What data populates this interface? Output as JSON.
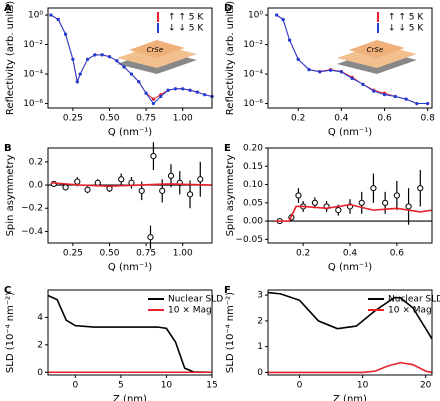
{
  "chart_data": [
    {
      "panel": "A",
      "type": "scatter",
      "log_y": true,
      "inset_label": "CrSe",
      "legend": "upper right",
      "xlabel": "Q (nm⁻¹)",
      "ylabel": "Reflectivity (arb. units)",
      "xlim": [
        0.08,
        1.2
      ],
      "xticks": [
        0.25,
        {
          "value": 0.5,
          "label": "0.50"
        },
        0.75,
        {
          "value": 1.0,
          "label": "1.00"
        }
      ],
      "ylim": [
        5e-07,
        3
      ],
      "yticks": [
        {
          "value": 1,
          "label": "10⁰"
        },
        {
          "value": 0.01,
          "label": "10⁻²"
        },
        {
          "value": 0.0001,
          "label": "10⁻⁴"
        },
        {
          "value": 1e-06,
          "label": "10⁻⁶"
        }
      ],
      "series": [
        {
          "name": "↑ ↑ 5 K",
          "color": "#e8202a",
          "style": "markers",
          "x": [
            0.1,
            0.15,
            0.2,
            0.25,
            0.28,
            0.3,
            0.35,
            0.4,
            0.45,
            0.5,
            0.55,
            0.6,
            0.65,
            0.7,
            0.75,
            0.8,
            0.85,
            0.9,
            0.95,
            1.0,
            1.05,
            1.1,
            1.15,
            1.2
          ],
          "values": [
            1,
            0.5,
            0.05,
            0.001,
            3e-05,
            0.0001,
            0.001,
            0.002,
            0.002,
            0.0015,
            0.0008,
            0.0003,
            0.0001,
            3e-05,
            5e-06,
            2e-06,
            4e-06,
            8e-06,
            1e-05,
            1e-05,
            8e-06,
            6e-06,
            4e-06,
            3e-06
          ]
        },
        {
          "name": "↓ ↓ 5 K",
          "color": "#1f3fd8",
          "style": "markers",
          "x": [
            0.1,
            0.15,
            0.2,
            0.25,
            0.28,
            0.3,
            0.35,
            0.4,
            0.45,
            0.5,
            0.55,
            0.6,
            0.65,
            0.7,
            0.75,
            0.8,
            0.85,
            0.9,
            0.95,
            1.0,
            1.05,
            1.1,
            1.15,
            1.2
          ],
          "values": [
            1,
            0.5,
            0.05,
            0.001,
            3e-05,
            0.0001,
            0.001,
            0.002,
            0.002,
            0.0015,
            0.0008,
            0.0003,
            0.0001,
            3e-05,
            5e-06,
            1e-06,
            3e-06,
            8e-06,
            1e-05,
            1e-05,
            8e-06,
            6e-06,
            4e-06,
            3e-06
          ]
        }
      ]
    },
    {
      "panel": "B",
      "type": "errorbar",
      "xlabel": "Q (nm⁻¹)",
      "ylabel": "Spin asymmetry",
      "xlim": [
        0.08,
        1.2
      ],
      "xticks": [
        0.25,
        {
          "value": 0.5,
          "label": "0.50"
        },
        0.75,
        {
          "value": 1.0,
          "label": "1.00"
        }
      ],
      "ylim": [
        -0.5,
        0.32
      ],
      "yticks": [
        {
          "value": -0.4,
          "label": "−0.4"
        },
        {
          "value": -0.2,
          "label": "−0.2"
        },
        {
          "value": 0,
          "label": "0.0"
        },
        {
          "value": 0.2,
          "label": "0.2"
        }
      ],
      "series": [
        {
          "color": "#000000",
          "style": "errorbar",
          "x": [
            0.12,
            0.2,
            0.28,
            0.35,
            0.42,
            0.5,
            0.58,
            0.65,
            0.72,
            0.78,
            0.8,
            0.86,
            0.92,
            0.98,
            1.05,
            1.12
          ],
          "values": [
            0.01,
            -0.02,
            0.03,
            -0.04,
            0.02,
            -0.03,
            0.05,
            0.02,
            -0.05,
            -0.45,
            0.25,
            -0.05,
            0.08,
            0.02,
            -0.08,
            0.05
          ],
          "errors": [
            0.01,
            0.02,
            0.04,
            0.03,
            0.03,
            0.03,
            0.05,
            0.05,
            0.08,
            0.1,
            0.12,
            0.1,
            0.1,
            0.1,
            0.12,
            0.15
          ]
        },
        {
          "color": "#e8202a",
          "style": "line",
          "x": [
            0.1,
            0.3,
            0.5,
            0.7,
            0.9,
            1.2
          ],
          "values": [
            0.02,
            0,
            -0.01,
            0,
            0.01,
            0
          ]
        }
      ]
    },
    {
      "panel": "C",
      "type": "line",
      "legend": "upper right",
      "xlabel": "Z (nm)",
      "ylabel": "SLD (10⁻⁴ nm⁻²)",
      "xlim": [
        -3,
        15
      ],
      "xticks": [
        0,
        5,
        10,
        15
      ],
      "ylim": [
        -0.2,
        6
      ],
      "yticks": [
        0,
        2,
        4
      ],
      "series": [
        {
          "name": "Nuclear SLD",
          "color": "#000000",
          "style": "line",
          "x": [
            -3,
            -2,
            -1,
            0,
            2,
            5,
            8,
            9,
            10,
            11,
            12,
            13,
            15
          ],
          "values": [
            5.6,
            5.3,
            3.8,
            3.4,
            3.3,
            3.3,
            3.3,
            3.3,
            3.2,
            2.2,
            0.3,
            0.02,
            0
          ]
        },
        {
          "name": "10 × Mag",
          "color": "#e8202a",
          "style": "line",
          "x": [
            -3,
            15
          ],
          "values": [
            0,
            0
          ]
        }
      ]
    },
    {
      "panel": "D",
      "type": "scatter",
      "log_y": true,
      "inset_label": "CrSe",
      "legend": "upper right",
      "xlabel": "Q (nm⁻¹)",
      "ylabel": "Reflectivity (arb. units)",
      "xlim": [
        0.06,
        0.82
      ],
      "xticks": [
        0.2,
        0.4,
        0.6,
        0.8
      ],
      "ylim": [
        5e-07,
        3
      ],
      "yticks": [
        {
          "value": 1,
          "label": "10⁰"
        },
        {
          "value": 0.01,
          "label": "10⁻²"
        },
        {
          "value": 0.0001,
          "label": "10⁻⁴"
        },
        {
          "value": 1e-06,
          "label": "10⁻⁶"
        }
      ],
      "series": [
        {
          "name": "↑ ↑ 5 K",
          "color": "#e8202a",
          "style": "markers",
          "x": [
            0.1,
            0.13,
            0.16,
            0.2,
            0.25,
            0.3,
            0.35,
            0.4,
            0.45,
            0.5,
            0.55,
            0.6,
            0.65,
            0.7,
            0.75,
            0.8
          ],
          "values": [
            1,
            0.5,
            0.02,
            0.001,
            0.0002,
            0.00015,
            0.0002,
            0.00015,
            6e-05,
            2e-05,
            8e-06,
            5e-06,
            3e-06,
            2e-06,
            1e-06,
            1e-06
          ]
        },
        {
          "name": "↓ ↓ 5 K",
          "color": "#1f3fd8",
          "style": "markers",
          "x": [
            0.1,
            0.13,
            0.16,
            0.2,
            0.25,
            0.3,
            0.35,
            0.4,
            0.45,
            0.5,
            0.55,
            0.6,
            0.65,
            0.7,
            0.75,
            0.8
          ],
          "values": [
            1,
            0.5,
            0.02,
            0.001,
            0.0002,
            0.00014,
            0.00018,
            0.00014,
            5e-05,
            2e-05,
            7e-06,
            4e-06,
            3e-06,
            2e-06,
            1e-06,
            1e-06
          ]
        }
      ]
    },
    {
      "panel": "E",
      "type": "errorbar",
      "xlabel": "Q (nm⁻¹)",
      "ylabel": "Spin asymmetry",
      "xlim": [
        0.05,
        0.75
      ],
      "xticks": [
        0.2,
        0.4,
        0.6
      ],
      "ylim": [
        -0.06,
        0.2
      ],
      "yticks": [
        {
          "value": -0.05,
          "label": "−0.05"
        },
        {
          "value": 0,
          "label": "0.00"
        },
        {
          "value": 0.05,
          "label": "0.05"
        },
        {
          "value": 0.1,
          "label": "0.10"
        },
        {
          "value": 0.15,
          "label": "0.15"
        },
        {
          "value": 0.2,
          "label": "0.20"
        }
      ],
      "series": [
        {
          "color": "#000000",
          "style": "errorbar",
          "x": [
            0.1,
            0.15,
            0.18,
            0.2,
            0.25,
            0.3,
            0.35,
            0.4,
            0.45,
            0.5,
            0.55,
            0.6,
            0.65,
            0.7
          ],
          "values": [
            0,
            0.01,
            0.07,
            0.04,
            0.05,
            0.04,
            0.03,
            0.04,
            0.05,
            0.09,
            0.05,
            0.07,
            0.04,
            0.09
          ],
          "errors": [
            0.005,
            0.01,
            0.02,
            0.015,
            0.015,
            0.015,
            0.015,
            0.02,
            0.03,
            0.04,
            0.03,
            0.04,
            0.05,
            0.05
          ]
        },
        {
          "color": "#e8202a",
          "style": "line",
          "x": [
            0.08,
            0.14,
            0.17,
            0.2,
            0.3,
            0.4,
            0.5,
            0.6,
            0.7,
            0.75
          ],
          "values": [
            0,
            0,
            0.04,
            0.04,
            0.035,
            0.045,
            0.03,
            0.035,
            0.025,
            0.03
          ]
        }
      ]
    },
    {
      "panel": "F",
      "type": "line",
      "legend": "upper right",
      "xlabel": "Z (nm)",
      "ylabel": "SLD (10⁻⁴ nm⁻²)",
      "xlim": [
        -5,
        21
      ],
      "xticks": [
        0,
        10,
        20
      ],
      "ylim": [
        -0.1,
        3.2
      ],
      "yticks": [
        0,
        1,
        2,
        3
      ],
      "series": [
        {
          "name": "Nuclear SLD",
          "color": "#000000",
          "style": "line",
          "x": [
            -5,
            -3,
            0,
            3,
            6,
            9,
            12,
            15,
            16,
            18,
            20,
            21
          ],
          "values": [
            3.1,
            3.05,
            2.8,
            2.0,
            1.7,
            1.8,
            2.4,
            2.9,
            2.9,
            2.5,
            1.7,
            1.3
          ]
        },
        {
          "name": "10 × Mag",
          "color": "#e8202a",
          "style": "line",
          "x": [
            -5,
            10,
            12,
            14,
            16,
            18,
            20,
            21
          ],
          "values": [
            0,
            0,
            0.05,
            0.25,
            0.38,
            0.3,
            0.05,
            0
          ]
        }
      ]
    }
  ]
}
